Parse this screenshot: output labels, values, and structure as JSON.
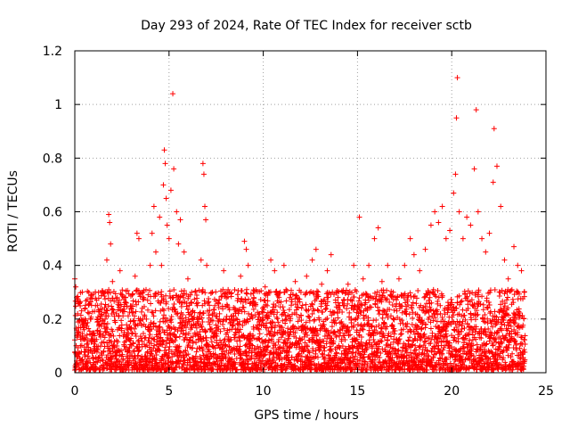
{
  "chart_data": {
    "type": "scatter",
    "title": "Day 293 of 2024, Rate Of TEC Index for receiver sctb",
    "xlabel": "GPS time / hours",
    "ylabel": "ROTI / TECUs",
    "xlim": [
      0,
      25
    ],
    "ylim": [
      0,
      1.2
    ],
    "xticks": [
      0,
      5,
      10,
      15,
      20,
      25
    ],
    "xtick_labels": [
      "0",
      "5",
      "10",
      "15",
      "20",
      "25"
    ],
    "yticks": [
      0,
      0.2,
      0.4,
      0.6,
      0.8,
      1,
      1.2
    ],
    "ytick_labels": [
      "0",
      "0.2",
      "0.4",
      "0.6",
      "0.8",
      "1",
      "1.2"
    ],
    "grid": true,
    "marker": "+",
    "color": "#ff0000",
    "series": [
      {
        "points": [
          [
            0.0,
            0.35
          ],
          [
            0.05,
            0.32
          ],
          [
            0.1,
            0.28
          ],
          [
            0.15,
            0.22
          ],
          [
            0.2,
            0.15
          ],
          [
            0.3,
            0.1
          ],
          [
            0.4,
            0.05
          ],
          [
            0.55,
            0.03
          ],
          [
            0.7,
            0.12
          ],
          [
            0.85,
            0.2
          ],
          [
            1.0,
            0.08
          ],
          [
            1.1,
            0.25
          ],
          [
            1.3,
            0.18
          ],
          [
            1.5,
            0.3
          ],
          [
            1.7,
            0.42
          ],
          [
            1.8,
            0.59
          ],
          [
            1.85,
            0.56
          ],
          [
            1.9,
            0.48
          ],
          [
            2.0,
            0.34
          ],
          [
            2.2,
            0.22
          ],
          [
            2.4,
            0.38
          ],
          [
            2.6,
            0.28
          ],
          [
            2.8,
            0.16
          ],
          [
            3.0,
            0.24
          ],
          [
            3.2,
            0.36
          ],
          [
            3.3,
            0.52
          ],
          [
            3.4,
            0.5
          ],
          [
            3.6,
            0.3
          ],
          [
            3.8,
            0.2
          ],
          [
            4.0,
            0.4
          ],
          [
            4.1,
            0.52
          ],
          [
            4.2,
            0.62
          ],
          [
            4.3,
            0.45
          ],
          [
            4.5,
            0.58
          ],
          [
            4.6,
            0.4
          ],
          [
            4.7,
            0.7
          ],
          [
            4.75,
            0.83
          ],
          [
            4.8,
            0.78
          ],
          [
            4.85,
            0.65
          ],
          [
            4.9,
            0.55
          ],
          [
            5.0,
            0.5
          ],
          [
            5.1,
            0.68
          ],
          [
            5.2,
            1.04
          ],
          [
            5.25,
            0.76
          ],
          [
            5.4,
            0.6
          ],
          [
            5.5,
            0.48
          ],
          [
            5.6,
            0.57
          ],
          [
            5.8,
            0.45
          ],
          [
            6.0,
            0.35
          ],
          [
            6.2,
            0.3
          ],
          [
            6.5,
            0.25
          ],
          [
            6.7,
            0.42
          ],
          [
            6.8,
            0.78
          ],
          [
            6.85,
            0.74
          ],
          [
            6.9,
            0.62
          ],
          [
            6.95,
            0.57
          ],
          [
            7.0,
            0.4
          ],
          [
            7.3,
            0.3
          ],
          [
            7.6,
            0.26
          ],
          [
            7.9,
            0.38
          ],
          [
            8.2,
            0.3
          ],
          [
            8.5,
            0.24
          ],
          [
            8.8,
            0.36
          ],
          [
            9.0,
            0.49
          ],
          [
            9.1,
            0.46
          ],
          [
            9.2,
            0.4
          ],
          [
            9.5,
            0.28
          ],
          [
            9.8,
            0.22
          ],
          [
            10.1,
            0.32
          ],
          [
            10.4,
            0.42
          ],
          [
            10.6,
            0.38
          ],
          [
            10.9,
            0.3
          ],
          [
            11.1,
            0.4
          ],
          [
            11.4,
            0.28
          ],
          [
            11.7,
            0.34
          ],
          [
            12.0,
            0.3
          ],
          [
            12.3,
            0.36
          ],
          [
            12.6,
            0.42
          ],
          [
            12.8,
            0.46
          ],
          [
            13.1,
            0.33
          ],
          [
            13.4,
            0.38
          ],
          [
            13.6,
            0.44
          ],
          [
            13.9,
            0.3
          ],
          [
            14.2,
            0.26
          ],
          [
            14.5,
            0.33
          ],
          [
            14.8,
            0.4
          ],
          [
            15.1,
            0.58
          ],
          [
            15.3,
            0.35
          ],
          [
            15.6,
            0.4
          ],
          [
            15.9,
            0.5
          ],
          [
            16.1,
            0.54
          ],
          [
            16.3,
            0.34
          ],
          [
            16.6,
            0.4
          ],
          [
            16.9,
            0.3
          ],
          [
            17.2,
            0.35
          ],
          [
            17.5,
            0.4
          ],
          [
            17.8,
            0.5
          ],
          [
            18.0,
            0.44
          ],
          [
            18.3,
            0.38
          ],
          [
            18.6,
            0.46
          ],
          [
            18.9,
            0.55
          ],
          [
            19.1,
            0.6
          ],
          [
            19.3,
            0.56
          ],
          [
            19.5,
            0.62
          ],
          [
            19.7,
            0.5
          ],
          [
            19.9,
            0.53
          ],
          [
            20.1,
            0.67
          ],
          [
            20.2,
            0.74
          ],
          [
            20.25,
            0.95
          ],
          [
            20.3,
            1.1
          ],
          [
            20.4,
            0.6
          ],
          [
            20.6,
            0.5
          ],
          [
            20.8,
            0.58
          ],
          [
            21.0,
            0.55
          ],
          [
            21.2,
            0.76
          ],
          [
            21.3,
            0.98
          ],
          [
            21.4,
            0.6
          ],
          [
            21.6,
            0.5
          ],
          [
            21.8,
            0.45
          ],
          [
            22.0,
            0.52
          ],
          [
            22.2,
            0.71
          ],
          [
            22.25,
            0.91
          ],
          [
            22.4,
            0.77
          ],
          [
            22.6,
            0.62
          ],
          [
            22.8,
            0.42
          ],
          [
            23.0,
            0.35
          ],
          [
            23.3,
            0.47
          ],
          [
            23.5,
            0.4
          ],
          [
            23.7,
            0.38
          ],
          [
            23.85,
            0.3
          ]
        ]
      }
    ],
    "dense_band": {
      "x_range": [
        0,
        23.9
      ],
      "y_floor": 0.01,
      "y_typical_max": 0.3
    }
  }
}
